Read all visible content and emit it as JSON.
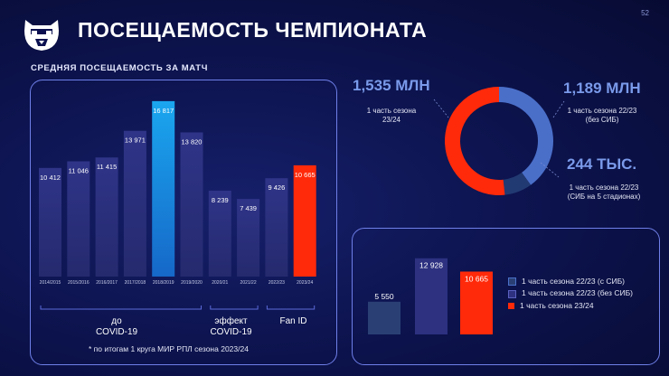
{
  "header": {
    "title": "ПОСЕЩАЕМОСТЬ ЧЕМПИОНАТА",
    "page_number": "52",
    "logo_icon": "bear-head-logo"
  },
  "subtitle": "СРЕДНЯЯ ПОСЕЩАЕМОСТЬ ЗА МАТЧ",
  "chart_data": [
    {
      "type": "bar",
      "title": "СРЕДНЯЯ ПОСЕЩАЕМОСТЬ ЗА МАТЧ",
      "categories": [
        "2014/2015",
        "2015/2016",
        "2016/2017",
        "2017/2018",
        "2018/2019",
        "2019/2020",
        "2020/21",
        "2021/22",
        "2022/23",
        "2023/24"
      ],
      "values": [
        10412,
        11046,
        11415,
        13971,
        16817,
        13820,
        8239,
        7439,
        9426,
        10665
      ],
      "labels": [
        "10 412",
        "11 046",
        "11 415",
        "13 971",
        "16 817",
        "13 820",
        "8 239",
        "7 439",
        "9 426",
        "10 665"
      ],
      "colors": [
        "#2d3180",
        "#2d3180",
        "#2d3180",
        "#2d3180",
        "#1890e0",
        "#2d3180",
        "#2d3180",
        "#2d3180",
        "#2d3180",
        "#ff2a0a"
      ],
      "groups": [
        {
          "label": "до COVID-19",
          "from": 0,
          "to": 5
        },
        {
          "label": "эффект COVID-19",
          "from": 6,
          "to": 7
        },
        {
          "label": "Fan ID",
          "from": 8,
          "to": 9
        }
      ],
      "ylim": [
        0,
        17500
      ],
      "footnote": "* по итогам 1 круга МИР РПЛ сезона 2023/24"
    },
    {
      "type": "pie",
      "slices": [
        {
          "label": "1 часть сезона 23/24",
          "value_text": "1,535 МЛН",
          "value": 1.535,
          "color": "#ff2a0a"
        },
        {
          "label": "1 часть сезона 22/23 (без СИБ)",
          "value_text": "1,189 МЛН",
          "value": 1.189,
          "color": "#4a6fc9"
        },
        {
          "label": "1 часть сезона 22/23 (СИБ на 5 стадионах)",
          "value_text": "244 ТЫС.",
          "value": 0.244,
          "color": "#223a72"
        }
      ]
    },
    {
      "type": "bar",
      "categories": [
        "1 часть сезона 22/23 (с СИБ)",
        "1 часть сезона 22/23 (без СИБ)",
        "1 часть сезона 23/24"
      ],
      "values": [
        5550,
        12928,
        10665
      ],
      "labels": [
        "5 550",
        "12 928",
        "10 665"
      ],
      "colors": [
        "#2a4075",
        "#2d3180",
        "#ff2a0a"
      ],
      "ylim": [
        0,
        13500
      ]
    }
  ],
  "donut_labels": {
    "red_value": "1,535 МЛН",
    "red_caption_1": "1 часть сезона",
    "red_caption_2": "23/24",
    "blue_value": "1,189 МЛН",
    "blue_caption_1": "1 часть сезона 22/23",
    "blue_caption_2": "(без СИБ)",
    "dark_value": "244 ТЫС.",
    "dark_caption_1": "1 часть сезона 22/23",
    "dark_caption_2": "(СИБ на 5 стадионах)"
  },
  "legend": [
    {
      "label": "1 часть сезона 22/23 (с СИБ)",
      "color": "#2a4075"
    },
    {
      "label": "1 часть сезона 22/23 (без СИБ)",
      "color": "#2d3180"
    },
    {
      "label": "1 часть сезона 23/24",
      "color": "#ff2a0a"
    }
  ],
  "groups_text": {
    "pre_line1": "до",
    "pre_line2": "COVID-19",
    "covid_line1": "эффект",
    "covid_line2": "COVID-19",
    "fanid": "Fan ID"
  }
}
